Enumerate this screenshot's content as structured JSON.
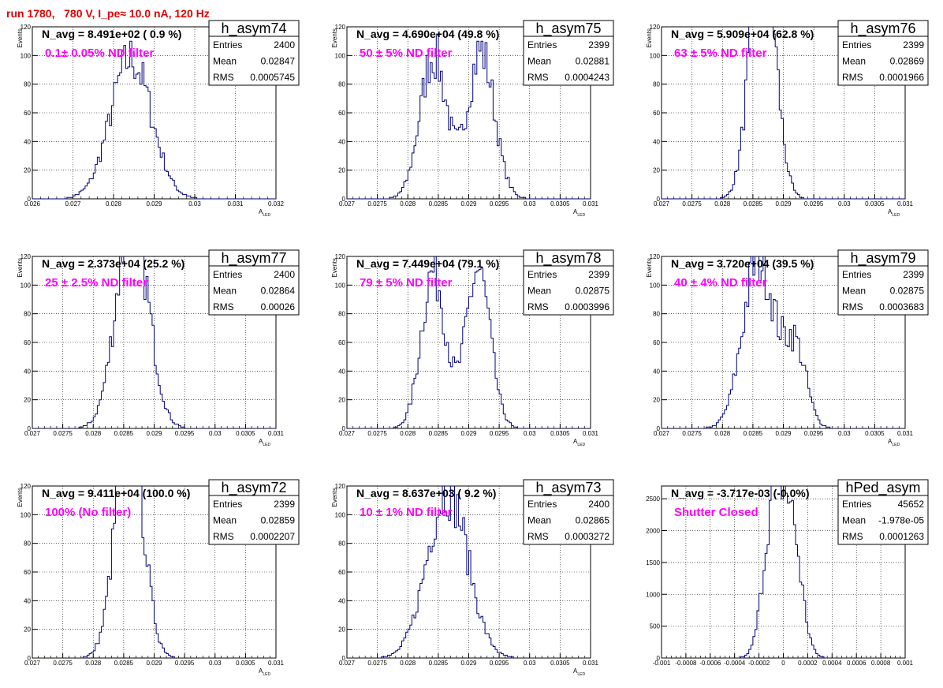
{
  "header": {
    "run_title": "run 1780,   780 V, I_pe≈ 10.0 nA, 120 Hz"
  },
  "colors": {
    "title": "#e00000",
    "filter_label": "#ff00ff",
    "histogram_line": "#000080"
  },
  "chart_data": [
    {
      "type": "histogram",
      "name": "h_asym74",
      "navg": "N_avg = 8.491e+02 ( 0.9 %)",
      "filter": "0.1± 0.05% ND filter",
      "stats": {
        "Entries": "2400",
        "Mean": "0.02847",
        "RMS": "0.0005745"
      },
      "xlabel": "A",
      "xlabel_sub": "LED",
      "ylabel": "Events",
      "xlim": [
        0.026,
        0.032
      ],
      "ylim": [
        0,
        120
      ],
      "xticks": [
        "0.026",
        "0.027",
        "0.028",
        "0.029",
        "0.03",
        "0.031",
        "0.032"
      ],
      "yticks": [
        "0",
        "20",
        "40",
        "60",
        "80",
        "100",
        "120"
      ],
      "peaks": [
        {
          "mu": 0.02843,
          "sigma": 0.0005,
          "amp": 98
        }
      ]
    },
    {
      "type": "histogram",
      "name": "h_asym75",
      "navg": "N_avg = 4.690e+04 (49.8 %)",
      "filter": "50 ± 5% ND filter",
      "stats": {
        "Entries": "2399",
        "Mean": "0.02881",
        "RMS": "0.0004243"
      },
      "xlabel": "A",
      "xlabel_sub": "LED",
      "ylabel": "Events",
      "xlim": [
        0.027,
        0.031
      ],
      "ylim": [
        0,
        120
      ],
      "xticks": [
        "0.027",
        "0.0275",
        "0.028",
        "0.0285",
        "0.029",
        "0.0295",
        "0.03",
        "0.0305",
        "0.031"
      ],
      "yticks": [
        "0",
        "20",
        "40",
        "60",
        "80",
        "100",
        "120"
      ],
      "peaks": [
        {
          "mu": 0.02842,
          "sigma": 0.00022,
          "amp": 100
        },
        {
          "mu": 0.0292,
          "sigma": 0.00022,
          "amp": 103
        }
      ]
    },
    {
      "type": "histogram",
      "name": "h_asym76",
      "navg": "N_avg = 5.909e+04 (62.8 %)",
      "filter": "63 ± 5% ND filter",
      "stats": {
        "Entries": "2399",
        "Mean": "0.02869",
        "RMS": "0.0001966"
      },
      "xlabel": "A",
      "xlabel_sub": "LED",
      "ylabel": "Events",
      "xlim": [
        0.027,
        0.031
      ],
      "ylim": [
        0,
        120
      ],
      "xticks": [
        "0.027",
        "0.0275",
        "0.028",
        "0.0285",
        "0.029",
        "0.0295",
        "0.03",
        "0.0305",
        "0.031"
      ],
      "yticks": [
        "0",
        "20",
        "40",
        "60",
        "80",
        "100",
        "120"
      ],
      "peaks": [
        {
          "mu": 0.02866,
          "sigma": 0.0002,
          "amp": 190
        }
      ]
    },
    {
      "type": "histogram",
      "name": "h_asym77",
      "navg": "N_avg = 2.373e+04 (25.2 %)",
      "filter": "25 ± 2.5% ND filter",
      "stats": {
        "Entries": "2400",
        "Mean": "0.02864",
        "RMS": "0.00026"
      },
      "xlabel": "A",
      "xlabel_sub": "LED",
      "ylabel": "Events",
      "xlim": [
        0.027,
        0.031
      ],
      "ylim": [
        0,
        120
      ],
      "xticks": [
        "0.027",
        "0.0275",
        "0.028",
        "0.0285",
        "0.029",
        "0.0295",
        "0.03",
        "0.0305",
        "0.031"
      ],
      "yticks": [
        "0",
        "20",
        "40",
        "60",
        "80",
        "100",
        "120"
      ],
      "peaks": [
        {
          "mu": 0.02864,
          "sigma": 0.00026,
          "amp": 150
        }
      ]
    },
    {
      "type": "histogram",
      "name": "h_asym78",
      "navg": "N_avg = 7.449e+04 (79.1 %)",
      "filter": "79 ± 5% ND filter",
      "stats": {
        "Entries": "2399",
        "Mean": "0.02875",
        "RMS": "0.0003996"
      },
      "xlabel": "A",
      "xlabel_sub": "LED",
      "ylabel": "Events",
      "xlim": [
        0.027,
        0.031
      ],
      "ylim": [
        0,
        120
      ],
      "xticks": [
        "0.027",
        "0.0275",
        "0.028",
        "0.0285",
        "0.029",
        "0.0295",
        "0.03",
        "0.0305",
        "0.031"
      ],
      "yticks": [
        "0",
        "20",
        "40",
        "60",
        "80",
        "100",
        "120"
      ],
      "peaks": [
        {
          "mu": 0.02842,
          "sigma": 0.0002,
          "amp": 110
        },
        {
          "mu": 0.02915,
          "sigma": 0.0002,
          "amp": 110
        }
      ]
    },
    {
      "type": "histogram",
      "name": "h_asym79",
      "navg": "N_avg = 3.720e+04 (39.5 %)",
      "filter": "40 ± 4% ND filter",
      "stats": {
        "Entries": "2399",
        "Mean": "0.02875",
        "RMS": "0.0003683"
      },
      "xlabel": "A",
      "xlabel_sub": "LED",
      "ylabel": "Events",
      "xlim": [
        0.027,
        0.031
      ],
      "ylim": [
        0,
        120
      ],
      "xticks": [
        "0.027",
        "0.0275",
        "0.028",
        "0.0285",
        "0.029",
        "0.0295",
        "0.03",
        "0.0305",
        "0.031"
      ],
      "yticks": [
        "0",
        "20",
        "40",
        "60",
        "80",
        "100",
        "120"
      ],
      "peaks": [
        {
          "mu": 0.0286,
          "sigma": 0.00026,
          "amp": 120
        },
        {
          "mu": 0.0292,
          "sigma": 0.00018,
          "amp": 55
        }
      ]
    },
    {
      "type": "histogram",
      "name": "h_asym72",
      "navg": "N_avg = 9.411e+04 (100.0 %)",
      "filter": "100% (No filter)",
      "stats": {
        "Entries": "2399",
        "Mean": "0.02859",
        "RMS": "0.0002207"
      },
      "xlabel": "A",
      "xlabel_sub": "LED",
      "ylabel": "Events",
      "xlim": [
        0.027,
        0.031
      ],
      "ylim": [
        0,
        120
      ],
      "xticks": [
        "0.027",
        "0.0275",
        "0.028",
        "0.0285",
        "0.029",
        "0.0295",
        "0.03",
        "0.0305",
        "0.031"
      ],
      "yticks": [
        "0",
        "20",
        "40",
        "60",
        "80",
        "100",
        "120"
      ],
      "peaks": [
        {
          "mu": 0.02859,
          "sigma": 0.00022,
          "amp": 170
        }
      ]
    },
    {
      "type": "histogram",
      "name": "h_asym73",
      "navg": "N_avg = 8.637e+03 ( 9.2 %)",
      "filter": "10 ± 1% ND filter",
      "stats": {
        "Entries": "2400",
        "Mean": "0.02865",
        "RMS": "0.0003272"
      },
      "xlabel": "A",
      "xlabel_sub": "LED",
      "ylabel": "Events",
      "xlim": [
        0.027,
        0.031
      ],
      "ylim": [
        0,
        120
      ],
      "xticks": [
        "0.027",
        "0.0275",
        "0.028",
        "0.0285",
        "0.029",
        "0.0295",
        "0.03",
        "0.0305",
        "0.031"
      ],
      "yticks": [
        "0",
        "20",
        "40",
        "60",
        "80",
        "100",
        "120"
      ],
      "peaks": [
        {
          "mu": 0.02865,
          "sigma": 0.00033,
          "amp": 118
        }
      ]
    },
    {
      "type": "histogram",
      "name": "hPed_asym",
      "navg": "N_avg = -3.717e-03 (-0.0%)",
      "filter": "Shutter Closed",
      "stats": {
        "Entries": "45652",
        "Mean": "-1.978e-05",
        "RMS": "0.0001263"
      },
      "xlabel": "",
      "xlabel_sub": "",
      "ylabel": "",
      "xlim": [
        -0.001,
        0.001
      ],
      "ylim": [
        0,
        2700
      ],
      "xticks": [
        "-0.001",
        "-0.0008",
        "-0.0006",
        "-0.0004",
        "-0.0002",
        "0",
        "0.0002",
        "0.0004",
        "0.0006",
        "0.0008",
        "0.001"
      ],
      "yticks": [
        "0",
        "500",
        "1000",
        "1500",
        "2000",
        "2500"
      ],
      "ytick_values": [
        0,
        500,
        1000,
        1500,
        2000,
        2500
      ],
      "peaks": [
        {
          "mu": -8e-05,
          "sigma": 8e-05,
          "amp": 2400
        },
        {
          "mu": 7e-05,
          "sigma": 8e-05,
          "amp": 1900
        }
      ]
    }
  ]
}
